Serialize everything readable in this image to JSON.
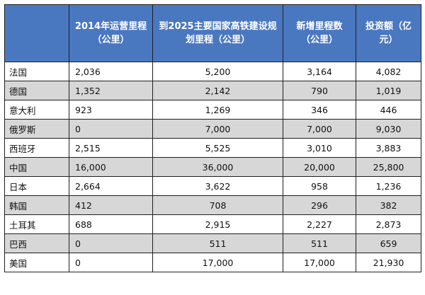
{
  "table": {
    "headers": [
      "",
      "2014年运营里程（公里）",
      "到2025主要国家高铁建设规划里程（公里）",
      "新增里程数（公里）",
      "投资额（亿元）"
    ],
    "rows": [
      [
        "法国",
        "2,036",
        "5,200",
        "3,164",
        "4,082"
      ],
      [
        "德国",
        "1,352",
        "2,142",
        "790",
        "1,019"
      ],
      [
        "意大利",
        "923",
        "1,269",
        "346",
        "446"
      ],
      [
        "俄罗斯",
        "0",
        "7,000",
        "7,000",
        "9,030"
      ],
      [
        "西班牙",
        "2,515",
        "5,525",
        "3,010",
        "3,883"
      ],
      [
        "中国",
        "16,000",
        "36,000",
        "20,000",
        "25,800"
      ],
      [
        "日本",
        "2,664",
        "3,622",
        "958",
        "1,236"
      ],
      [
        "韩国",
        "412",
        "708",
        "296",
        "382"
      ],
      [
        "土耳其",
        "688",
        "2,915",
        "2,227",
        "2,873"
      ],
      [
        "巴西",
        "0",
        "511",
        "511",
        "659"
      ],
      [
        "美国",
        "0",
        "17,000",
        "17,000",
        "21,930"
      ]
    ]
  },
  "colors": {
    "header_bg": "#4a78c0",
    "header_text": "#ffffff",
    "row_alt_bg": "#d7d7d7",
    "row_bg": "#ffffff",
    "border": "#1f1f1f"
  }
}
